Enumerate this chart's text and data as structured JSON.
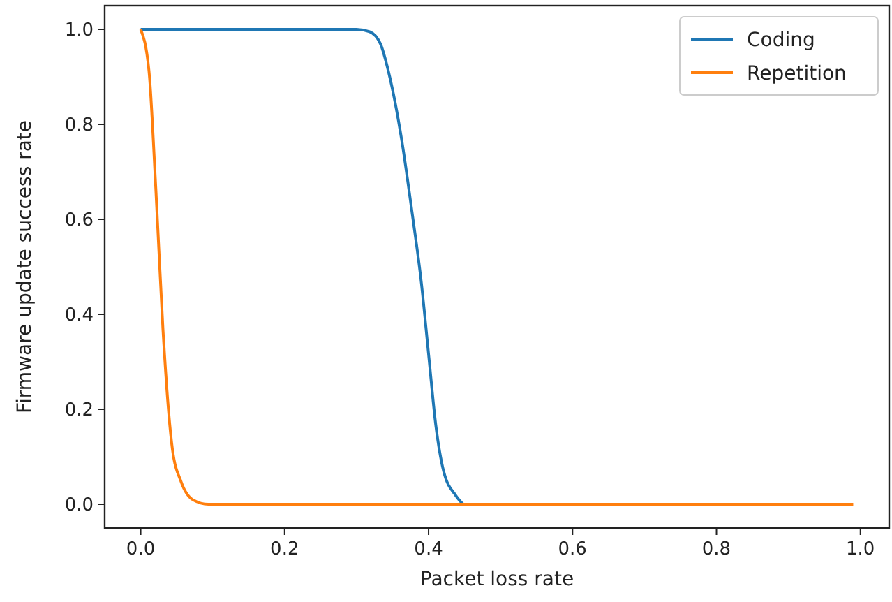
{
  "chart_data": {
    "type": "line",
    "xlabel": "Packet loss rate",
    "ylabel": "Firmware update success rate",
    "xlim": [
      -0.05,
      1.04
    ],
    "ylim": [
      -0.05,
      1.05
    ],
    "xticks": [
      {
        "value": 0,
        "label": "0.0"
      },
      0.2,
      0.4,
      0.6,
      0.8,
      {
        "value": 1,
        "label": "1.0"
      }
    ],
    "yticks": [
      {
        "value": 0,
        "label": "0.0"
      },
      0.2,
      0.4,
      0.6,
      0.8,
      {
        "value": 1,
        "label": "1.0"
      }
    ],
    "legend": "top right",
    "grid": false,
    "series": [
      {
        "name": "Coding",
        "color": "#1f77b4",
        "x": [
          0,
          0.1,
          0.2,
          0.3,
          0.318,
          0.333,
          0.344,
          0.363,
          0.377,
          0.39,
          0.4,
          0.41,
          0.421,
          0.438,
          0.448
        ],
        "values": [
          1,
          1,
          1,
          1,
          0.995,
          0.97,
          0.913,
          0.764,
          0.615,
          0.466,
          0.316,
          0.167,
          0.069,
          0.018,
          0
        ]
      },
      {
        "name": "Repetition",
        "color": "#ff7f0e",
        "x": [
          0,
          0.0115,
          0.021,
          0.031,
          0.044,
          0.056,
          0.073,
          0.094,
          0.2,
          0.4,
          0.6,
          0.8,
          0.99
        ],
        "values": [
          1,
          0.913,
          0.666,
          0.367,
          0.117,
          0.048,
          0.009,
          0,
          0,
          0,
          0,
          0,
          0
        ]
      }
    ]
  }
}
